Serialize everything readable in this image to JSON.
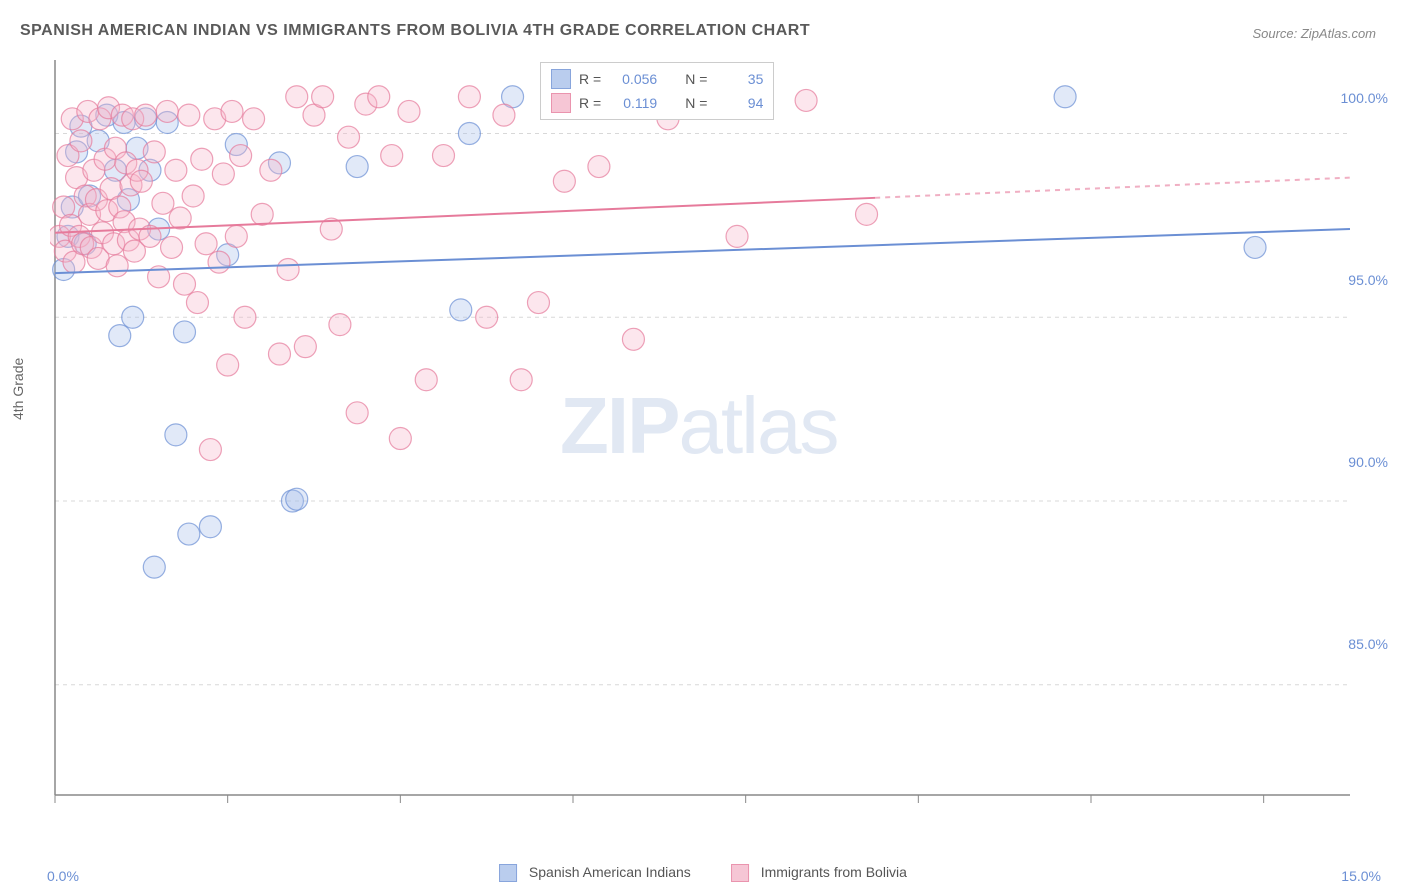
{
  "title": "SPANISH AMERICAN INDIAN VS IMMIGRANTS FROM BOLIVIA 4TH GRADE CORRELATION CHART",
  "source": "Source: ZipAtlas.com",
  "watermark_a": "ZIP",
  "watermark_b": "atlas",
  "chart": {
    "type": "scatter",
    "y_axis_label": "4th Grade",
    "xlim": [
      0,
      15
    ],
    "ylim": [
      82,
      102
    ],
    "x_ticks": [
      0,
      2,
      4,
      6,
      8,
      10,
      12,
      14
    ],
    "x_tick_labels": {
      "0": "0.0%",
      "15": "15.0%"
    },
    "y_ticks": [
      85,
      90,
      95,
      100
    ],
    "y_tick_labels": {
      "85": "85.0%",
      "90": "90.0%",
      "95": "95.0%",
      "100": "100.0%"
    },
    "grid_color": "#d8d8d8",
    "axis_color": "#888888",
    "background_color": "#ffffff",
    "marker_radius": 11,
    "marker_fill_opacity": 0.35,
    "line_width": 2,
    "series": [
      {
        "name": "Spanish American Indians",
        "color": "#6b8fd4",
        "fill": "#a9c1ea",
        "R": "0.056",
        "N": "35",
        "trend": {
          "x1": 0,
          "y1": 96.2,
          "x2": 15,
          "y2": 97.4,
          "solid_until": 15
        },
        "points": [
          [
            0.1,
            96.3
          ],
          [
            0.15,
            97.2
          ],
          [
            0.2,
            98.0
          ],
          [
            0.25,
            99.5
          ],
          [
            0.3,
            100.2
          ],
          [
            0.35,
            97.0
          ],
          [
            0.4,
            98.3
          ],
          [
            0.5,
            99.8
          ],
          [
            0.6,
            100.5
          ],
          [
            0.7,
            99.0
          ],
          [
            0.75,
            94.5
          ],
          [
            0.8,
            100.3
          ],
          [
            0.85,
            98.2
          ],
          [
            0.9,
            95.0
          ],
          [
            0.95,
            99.6
          ],
          [
            1.05,
            100.4
          ],
          [
            1.1,
            99.0
          ],
          [
            1.15,
            88.2
          ],
          [
            1.2,
            97.4
          ],
          [
            1.3,
            100.3
          ],
          [
            1.4,
            91.8
          ],
          [
            1.5,
            94.6
          ],
          [
            1.55,
            89.1
          ],
          [
            1.8,
            89.3
          ],
          [
            2.0,
            96.7
          ],
          [
            2.1,
            99.7
          ],
          [
            2.6,
            99.2
          ],
          [
            2.75,
            90.0
          ],
          [
            2.8,
            90.05
          ],
          [
            3.5,
            99.1
          ],
          [
            4.7,
            95.2
          ],
          [
            4.8,
            100.0
          ],
          [
            5.3,
            101.0
          ],
          [
            11.7,
            101.0
          ],
          [
            13.9,
            96.9
          ]
        ]
      },
      {
        "name": "Immigrants from Bolivia",
        "color": "#e67a9b",
        "fill": "#f5b8cb",
        "R": "0.119",
        "N": "94",
        "trend": {
          "x1": 0,
          "y1": 97.3,
          "x2": 15,
          "y2": 98.8,
          "solid_until": 9.5
        },
        "points": [
          [
            0.05,
            97.2
          ],
          [
            0.1,
            98.0
          ],
          [
            0.12,
            96.8
          ],
          [
            0.15,
            99.4
          ],
          [
            0.18,
            97.5
          ],
          [
            0.2,
            100.4
          ],
          [
            0.22,
            96.5
          ],
          [
            0.25,
            98.8
          ],
          [
            0.28,
            97.2
          ],
          [
            0.3,
            99.8
          ],
          [
            0.32,
            97.0
          ],
          [
            0.35,
            98.3
          ],
          [
            0.38,
            100.6
          ],
          [
            0.4,
            97.8
          ],
          [
            0.42,
            96.9
          ],
          [
            0.45,
            99.0
          ],
          [
            0.48,
            98.2
          ],
          [
            0.5,
            96.6
          ],
          [
            0.52,
            100.4
          ],
          [
            0.55,
            97.3
          ],
          [
            0.58,
            99.3
          ],
          [
            0.6,
            97.9
          ],
          [
            0.62,
            100.7
          ],
          [
            0.65,
            98.5
          ],
          [
            0.68,
            97.0
          ],
          [
            0.7,
            99.6
          ],
          [
            0.72,
            96.4
          ],
          [
            0.75,
            98.0
          ],
          [
            0.78,
            100.5
          ],
          [
            0.8,
            97.6
          ],
          [
            0.82,
            99.2
          ],
          [
            0.85,
            97.1
          ],
          [
            0.88,
            98.6
          ],
          [
            0.9,
            100.4
          ],
          [
            0.92,
            96.8
          ],
          [
            0.95,
            99.0
          ],
          [
            0.98,
            97.4
          ],
          [
            1.0,
            98.7
          ],
          [
            1.05,
            100.5
          ],
          [
            1.1,
            97.2
          ],
          [
            1.15,
            99.5
          ],
          [
            1.2,
            96.1
          ],
          [
            1.25,
            98.1
          ],
          [
            1.3,
            100.6
          ],
          [
            1.35,
            96.9
          ],
          [
            1.4,
            99.0
          ],
          [
            1.45,
            97.7
          ],
          [
            1.5,
            95.9
          ],
          [
            1.55,
            100.5
          ],
          [
            1.6,
            98.3
          ],
          [
            1.65,
            95.4
          ],
          [
            1.7,
            99.3
          ],
          [
            1.75,
            97.0
          ],
          [
            1.8,
            91.4
          ],
          [
            1.85,
            100.4
          ],
          [
            1.9,
            96.5
          ],
          [
            1.95,
            98.9
          ],
          [
            2.0,
            93.7
          ],
          [
            2.05,
            100.6
          ],
          [
            2.1,
            97.2
          ],
          [
            2.15,
            99.4
          ],
          [
            2.2,
            95.0
          ],
          [
            2.3,
            100.4
          ],
          [
            2.4,
            97.8
          ],
          [
            2.5,
            99.0
          ],
          [
            2.6,
            94.0
          ],
          [
            2.7,
            96.3
          ],
          [
            2.8,
            101.0
          ],
          [
            2.9,
            94.2
          ],
          [
            3.0,
            100.5
          ],
          [
            3.1,
            101.0
          ],
          [
            3.2,
            97.4
          ],
          [
            3.3,
            94.8
          ],
          [
            3.4,
            99.9
          ],
          [
            3.5,
            92.4
          ],
          [
            3.6,
            100.8
          ],
          [
            3.75,
            101.0
          ],
          [
            3.9,
            99.4
          ],
          [
            4.0,
            91.7
          ],
          [
            4.1,
            100.6
          ],
          [
            4.3,
            93.3
          ],
          [
            4.5,
            99.4
          ],
          [
            4.8,
            101.0
          ],
          [
            5.0,
            95.0
          ],
          [
            5.2,
            100.5
          ],
          [
            5.4,
            93.3
          ],
          [
            5.6,
            95.4
          ],
          [
            5.9,
            98.7
          ],
          [
            6.3,
            99.1
          ],
          [
            6.7,
            94.4
          ],
          [
            7.1,
            100.4
          ],
          [
            7.9,
            97.2
          ],
          [
            8.7,
            100.9
          ],
          [
            9.4,
            97.8
          ]
        ]
      }
    ]
  },
  "legend_top_labels": {
    "R": "R =",
    "N": "N ="
  },
  "legend_bottom": [
    {
      "label": "Spanish American Indians",
      "series": 0
    },
    {
      "label": "Immigrants from Bolivia",
      "series": 1
    }
  ]
}
